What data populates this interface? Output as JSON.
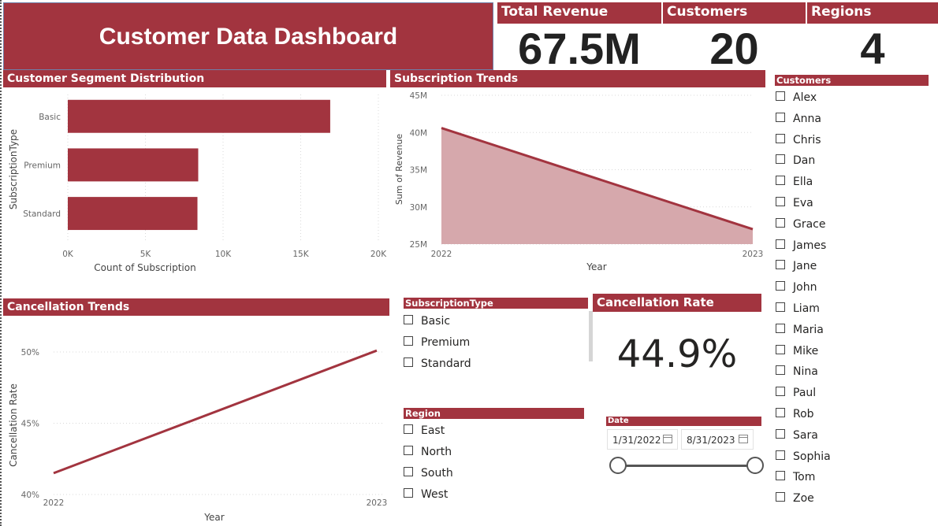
{
  "title": "Customer Data Dashboard",
  "kpis": {
    "total_revenue": {
      "label": "Total Revenue",
      "value": "67.5M"
    },
    "customers": {
      "label": "Customers",
      "value": "20"
    },
    "regions": {
      "label": "Regions",
      "value": "4"
    }
  },
  "segment": {
    "header": "Customer Segment Distribution"
  },
  "subscription_trends": {
    "header": "Subscription Trends"
  },
  "cancellation_trends": {
    "header": "Cancellation Trends"
  },
  "cancellation_rate": {
    "header": "Cancellation Rate",
    "value": "44.9%"
  },
  "colors": {
    "accent": "#a2343f",
    "area_fill": "#d6a8ac"
  },
  "chart_data": [
    {
      "type": "bar",
      "orientation": "horizontal",
      "categories": [
        "Basic",
        "Premium",
        "Standard"
      ],
      "values": [
        16900,
        8400,
        8350
      ],
      "xlabel": "Count of Subscription",
      "ylabel": "SubscriptionType",
      "xlim": [
        0,
        20000
      ],
      "xticks": [
        "0K",
        "5K",
        "10K",
        "15K",
        "20K"
      ],
      "xtick_values": [
        0,
        5000,
        10000,
        15000,
        20000
      ],
      "grid": true
    },
    {
      "type": "area",
      "x": [
        "2022",
        "2023"
      ],
      "values": [
        40.6,
        27.0
      ],
      "xlabel": "Year",
      "ylabel": "Sum of Revenue",
      "ylim": [
        25,
        45
      ],
      "yticks": [
        "45M",
        "40M",
        "35M",
        "30M",
        "25M"
      ],
      "ytick_values": [
        45,
        40,
        35,
        30,
        25
      ],
      "grid": true
    },
    {
      "type": "line",
      "x": [
        "2022",
        "2023"
      ],
      "values": [
        41.5,
        50.1
      ],
      "xlabel": "Year",
      "ylabel": "Cancellation Rate",
      "ylim": [
        40,
        51
      ],
      "yticks": [
        "50%",
        "45%",
        "40%"
      ],
      "ytick_values": [
        50,
        45,
        40
      ],
      "grid": true
    }
  ],
  "slicers": {
    "subscription": {
      "header": "SubscriptionType",
      "items": [
        "Basic",
        "Premium",
        "Standard"
      ]
    },
    "region": {
      "header": "Region",
      "items": [
        "East",
        "North",
        "South",
        "West"
      ]
    },
    "customers": {
      "header": "Customers",
      "items": [
        "Alex",
        "Anna",
        "Chris",
        "Dan",
        "Ella",
        "Eva",
        "Grace",
        "James",
        "Jane",
        "John",
        "Liam",
        "Maria",
        "Mike",
        "Nina",
        "Paul",
        "Rob",
        "Sara",
        "Sophia",
        "Tom",
        "Zoe"
      ]
    },
    "date": {
      "header": "Date",
      "start": "1/31/2022",
      "end": "8/31/2023"
    }
  }
}
